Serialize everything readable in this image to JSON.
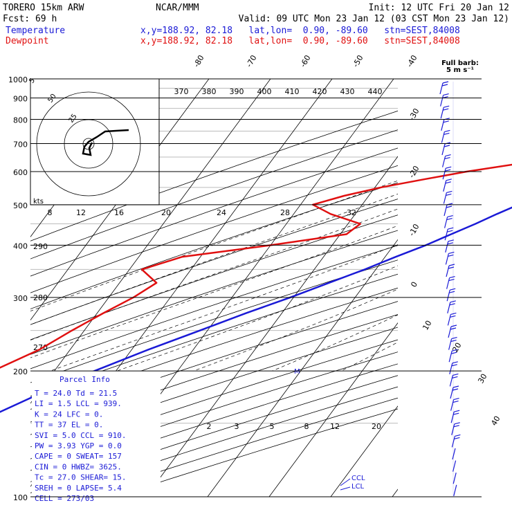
{
  "header": {
    "model": "TORERO  15km ARW",
    "org": "NCAR/MMM",
    "init": "Init: 12 UTC Fri 20 Jan 12",
    "fcst": "Fcst:   69 h",
    "valid": "Valid: 09 UTC Mon 23 Jan 12 (03 CST Mon 23 Jan 12)",
    "temp_label": "Temperature",
    "dew_label": "Dewpoint",
    "temp_loc": "x,y=188.92, 82.18   lat,lon=  0.90, -89.60   stn=SEST,84008",
    "dew_loc": "x,y=188.92, 82.18   lat,lon=  0.90, -89.60   stn=SEST,84008",
    "full_barb": "Full barb:",
    "full_barb_val": "5 m s⁻¹"
  },
  "colors": {
    "temperature": "#1a1ad6",
    "dewpoint": "#e01010",
    "text": "#000000"
  },
  "chart_data": {
    "type": "line",
    "plot": "skew-T log-p sounding",
    "y_axis": {
      "scale": "log",
      "unit": "hPa",
      "range": [
        1000,
        100
      ],
      "ticks": [
        "100",
        "200",
        "300",
        "400",
        "500",
        "600",
        "700",
        "800",
        "900",
        "1000"
      ]
    },
    "x_axis": {
      "skewed_isotherm_labels": [
        "-80",
        "-70",
        "-60",
        "-50",
        "-40",
        "-30",
        "-20",
        "-10",
        "0",
        "10",
        "20",
        "30",
        "40"
      ]
    },
    "theta_labels": [
      "370",
      "380",
      "390",
      "400",
      "410",
      "420",
      "430",
      "440"
    ],
    "theta_left_labels": [
      "290",
      "280",
      "270"
    ],
    "mixing_ratio_labels": [
      "2",
      "3",
      "5",
      "8",
      "12",
      "20"
    ],
    "mixing_ratio_top_labels": [
      "8",
      "12",
      "16",
      "20",
      "24",
      "28",
      "32"
    ],
    "hodograph": {
      "units": "kts",
      "ring_labels": [
        "50",
        "25",
        "5"
      ]
    },
    "series": [
      {
        "name": "Temperature",
        "points": [
          [
            1000,
            25.0
          ],
          [
            975,
            23.0
          ],
          [
            950,
            21.5
          ],
          [
            925,
            21.0
          ],
          [
            900,
            20.4
          ],
          [
            875,
            19.4
          ],
          [
            850,
            18.6
          ],
          [
            825,
            17.9
          ],
          [
            800,
            17.3
          ],
          [
            775,
            16.6
          ],
          [
            750,
            14.8
          ],
          [
            725,
            13.0
          ],
          [
            700,
            11.2
          ],
          [
            675,
            9.5
          ],
          [
            650,
            7.5
          ],
          [
            625,
            5.4
          ],
          [
            600,
            3.3
          ],
          [
            575,
            1.4
          ],
          [
            550,
            -0.5
          ],
          [
            525,
            -2.6
          ],
          [
            500,
            -4.6
          ],
          [
            475,
            -7.0
          ],
          [
            450,
            -9.3
          ],
          [
            425,
            -12.0
          ],
          [
            400,
            -14.8
          ],
          [
            375,
            -18.3
          ],
          [
            350,
            -21.8
          ],
          [
            325,
            -26.0
          ],
          [
            300,
            -30.5
          ],
          [
            275,
            -35.8
          ],
          [
            250,
            -41.2
          ],
          [
            225,
            -47.3
          ],
          [
            200,
            -53.5
          ],
          [
            175,
            -60.0
          ],
          [
            150,
            -66.5
          ],
          [
            125,
            -73.5
          ],
          [
            115,
            -77.5
          ],
          [
            100,
            -83.0
          ]
        ]
      },
      {
        "name": "Dewpoint",
        "points": [
          [
            1000,
            21.5
          ],
          [
            975,
            20.8
          ],
          [
            950,
            19.4
          ],
          [
            925,
            18.0
          ],
          [
            900,
            15.8
          ],
          [
            875,
            17.0
          ],
          [
            850,
            16.5
          ],
          [
            825,
            15.5
          ],
          [
            800,
            14.8
          ],
          [
            775,
            11.0
          ],
          [
            750,
            6.0
          ],
          [
            725,
            3.0
          ],
          [
            700,
            1.0
          ],
          [
            675,
            -1.5
          ],
          [
            650,
            -5.0
          ],
          [
            625,
            -10.0
          ],
          [
            600,
            -17.0
          ],
          [
            575,
            -23.0
          ],
          [
            550,
            -29.0
          ],
          [
            525,
            -34.0
          ],
          [
            500,
            -38.0
          ],
          [
            475,
            -34.0
          ],
          [
            450,
            -28.0
          ],
          [
            425,
            -29.0
          ],
          [
            400,
            -40.0
          ],
          [
            375,
            -53.0
          ],
          [
            350,
            -58.0
          ],
          [
            325,
            -54.0
          ],
          [
            300,
            -56.0
          ],
          [
            275,
            -59.0
          ],
          [
            250,
            -62.0
          ],
          [
            225,
            -65.0
          ],
          [
            200,
            -70.0
          ],
          [
            175,
            -75.0
          ],
          [
            150,
            -79.0
          ],
          [
            125,
            -82.0
          ],
          [
            115,
            -84.5
          ],
          [
            100,
            -86.0
          ]
        ]
      }
    ],
    "annotations": [
      "CCL",
      "LCL",
      "M"
    ]
  },
  "parcel_info": {
    "title": "Parcel Info",
    "lines": [
      "T   =    24.0  Td =  21.5",
      "LI  =     1.5  LCL =  939.",
      "K   =      24  LFC =    0.",
      "TT  =      37  EL  =    0.",
      "SVI =     5.0  CCL =  910.",
      "PW  =    3.93  YGP =   0.0",
      "CAPE =      0  SWEAT=  157",
      "CIN  =      0  HWBZ= 3625.",
      "Tc   =   27.0  SHEAR=   15.",
      "SREH =      0  LAPSE=   5.4",
      "CELL = 273/03"
    ]
  }
}
